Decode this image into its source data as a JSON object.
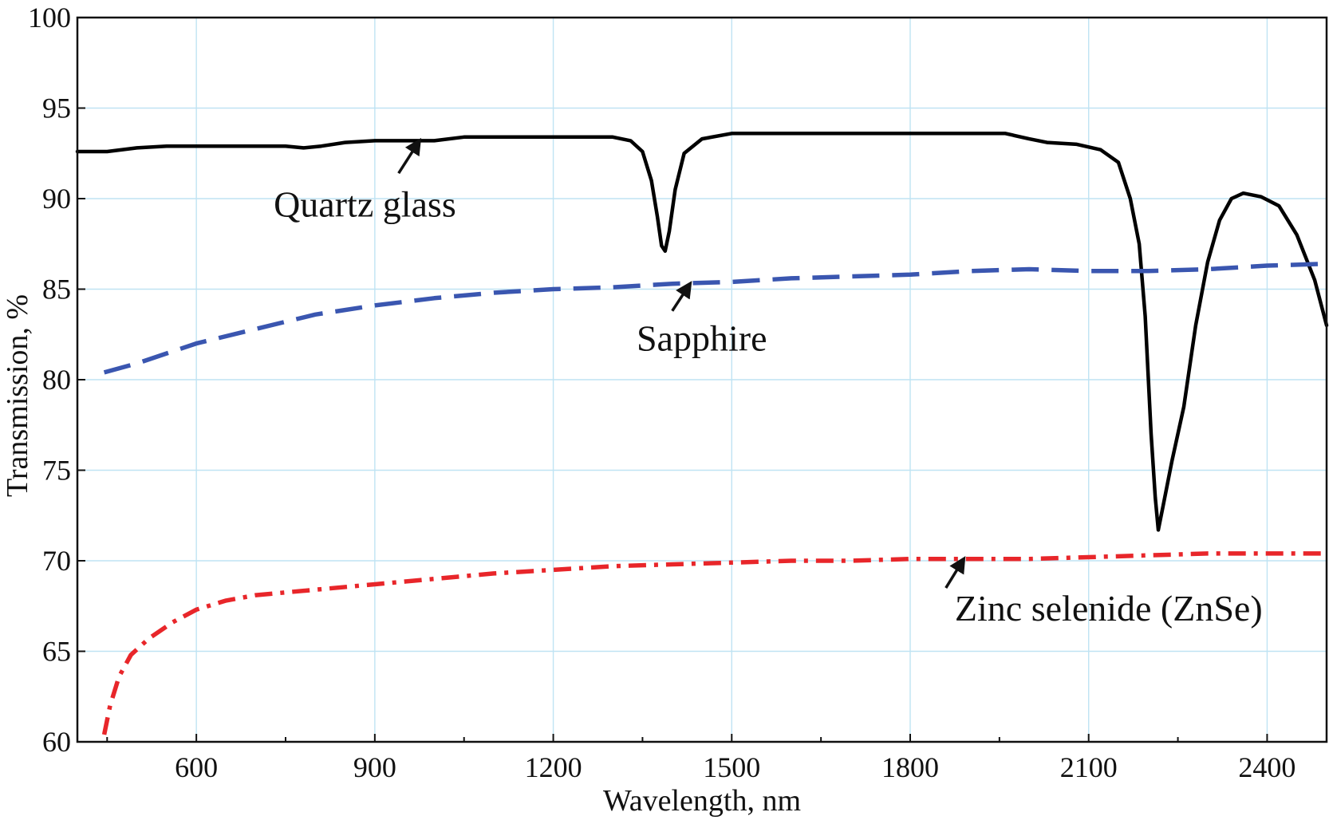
{
  "chart_data": {
    "type": "line",
    "title": "",
    "xlabel": "Wavelength, nm",
    "ylabel": "Transmission, %",
    "xlim": [
      400,
      2500
    ],
    "ylim": [
      60,
      100
    ],
    "x_ticks": [
      600,
      900,
      1200,
      1500,
      1800,
      2100,
      2400
    ],
    "y_ticks": [
      60,
      65,
      70,
      75,
      80,
      85,
      90,
      95,
      100
    ],
    "grid": true,
    "legend": "none",
    "series": [
      {
        "name": "Quartz glass",
        "color": "#000000",
        "style": "solid",
        "points": [
          [
            400,
            92.6
          ],
          [
            450,
            92.6
          ],
          [
            500,
            92.8
          ],
          [
            550,
            92.9
          ],
          [
            600,
            92.9
          ],
          [
            650,
            92.9
          ],
          [
            700,
            92.9
          ],
          [
            750,
            92.9
          ],
          [
            780,
            92.8
          ],
          [
            810,
            92.9
          ],
          [
            850,
            93.1
          ],
          [
            900,
            93.2
          ],
          [
            950,
            93.2
          ],
          [
            1000,
            93.2
          ],
          [
            1050,
            93.4
          ],
          [
            1100,
            93.4
          ],
          [
            1150,
            93.4
          ],
          [
            1200,
            93.4
          ],
          [
            1250,
            93.4
          ],
          [
            1300,
            93.4
          ],
          [
            1330,
            93.2
          ],
          [
            1350,
            92.6
          ],
          [
            1365,
            91.0
          ],
          [
            1375,
            89.0
          ],
          [
            1382,
            87.4
          ],
          [
            1388,
            87.1
          ],
          [
            1395,
            88.2
          ],
          [
            1405,
            90.5
          ],
          [
            1420,
            92.5
          ],
          [
            1450,
            93.3
          ],
          [
            1500,
            93.6
          ],
          [
            1550,
            93.6
          ],
          [
            1600,
            93.6
          ],
          [
            1700,
            93.6
          ],
          [
            1800,
            93.6
          ],
          [
            1900,
            93.6
          ],
          [
            1960,
            93.6
          ],
          [
            2000,
            93.3
          ],
          [
            2030,
            93.1
          ],
          [
            2080,
            93.0
          ],
          [
            2120,
            92.7
          ],
          [
            2150,
            92.0
          ],
          [
            2170,
            90.0
          ],
          [
            2185,
            87.5
          ],
          [
            2195,
            83.5
          ],
          [
            2205,
            77.0
          ],
          [
            2212,
            73.5
          ],
          [
            2217,
            71.7
          ],
          [
            2225,
            73.0
          ],
          [
            2240,
            75.5
          ],
          [
            2260,
            78.5
          ],
          [
            2280,
            83.0
          ],
          [
            2300,
            86.5
          ],
          [
            2320,
            88.8
          ],
          [
            2340,
            90.0
          ],
          [
            2360,
            90.3
          ],
          [
            2390,
            90.1
          ],
          [
            2420,
            89.6
          ],
          [
            2450,
            88.0
          ],
          [
            2480,
            85.5
          ],
          [
            2500,
            83.0
          ]
        ]
      },
      {
        "name": "Sapphire",
        "color": "#3a56b0",
        "style": "dashed",
        "points": [
          [
            445,
            80.4
          ],
          [
            500,
            80.9
          ],
          [
            600,
            82.0
          ],
          [
            700,
            82.8
          ],
          [
            800,
            83.6
          ],
          [
            900,
            84.1
          ],
          [
            1000,
            84.5
          ],
          [
            1100,
            84.8
          ],
          [
            1200,
            85.0
          ],
          [
            1300,
            85.1
          ],
          [
            1400,
            85.3
          ],
          [
            1500,
            85.4
          ],
          [
            1600,
            85.6
          ],
          [
            1700,
            85.7
          ],
          [
            1800,
            85.8
          ],
          [
            1900,
            86.0
          ],
          [
            2000,
            86.1
          ],
          [
            2100,
            86.0
          ],
          [
            2200,
            86.0
          ],
          [
            2300,
            86.1
          ],
          [
            2400,
            86.3
          ],
          [
            2500,
            86.4
          ]
        ]
      },
      {
        "name": "Zinc selenide (ZnSe)",
        "color": "#e8262a",
        "style": "dashdot",
        "points": [
          [
            445,
            60.4
          ],
          [
            455,
            62.0
          ],
          [
            470,
            63.6
          ],
          [
            490,
            64.8
          ],
          [
            520,
            65.7
          ],
          [
            560,
            66.6
          ],
          [
            600,
            67.3
          ],
          [
            650,
            67.8
          ],
          [
            700,
            68.1
          ],
          [
            800,
            68.4
          ],
          [
            900,
            68.7
          ],
          [
            1000,
            69.0
          ],
          [
            1100,
            69.3
          ],
          [
            1200,
            69.5
          ],
          [
            1300,
            69.7
          ],
          [
            1400,
            69.8
          ],
          [
            1500,
            69.9
          ],
          [
            1600,
            70.0
          ],
          [
            1700,
            70.0
          ],
          [
            1800,
            70.1
          ],
          [
            1900,
            70.1
          ],
          [
            2000,
            70.1
          ],
          [
            2100,
            70.2
          ],
          [
            2200,
            70.3
          ],
          [
            2300,
            70.4
          ],
          [
            2400,
            70.4
          ],
          [
            2500,
            70.4
          ]
        ]
      }
    ],
    "annotations": [
      {
        "text": "Quartz glass",
        "x": 730,
        "y": 89.0,
        "arrow_to": [
          975,
          93.2
        ],
        "arrow_from": [
          940,
          91.4
        ]
      },
      {
        "text": "Sapphire",
        "x": 1340,
        "y": 81.6,
        "arrow_to": [
          1430,
          85.3
        ],
        "arrow_from": [
          1400,
          83.8
        ]
      },
      {
        "text": "Zinc selenide (ZnSe)",
        "x": 1875,
        "y": 66.7,
        "arrow_to": [
          1890,
          70.1
        ],
        "arrow_from": [
          1860,
          68.5
        ]
      }
    ]
  }
}
